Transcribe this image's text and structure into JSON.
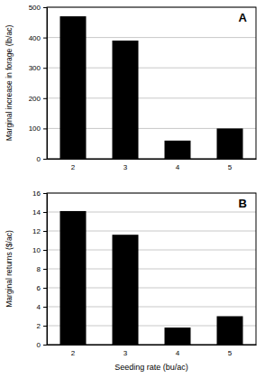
{
  "chart_data": [
    {
      "type": "bar",
      "title": "A",
      "y_label": "Marginal increase in forage (lb/ac)",
      "categories": [
        "2",
        "3",
        "4",
        "5"
      ],
      "values": [
        470,
        390,
        60,
        100
      ],
      "color": "#000000",
      "ylim": [
        0,
        500
      ],
      "yticks": [
        0,
        100,
        200,
        300,
        400,
        500
      ],
      "grid": true
    },
    {
      "type": "bar",
      "title": "B",
      "y_label": "Marginal returns ($/ac)",
      "x_label": "Seeding rate (bu/ac)",
      "categories": [
        "2",
        "3",
        "4",
        "5"
      ],
      "values": [
        14.1,
        11.6,
        1.8,
        3.0
      ],
      "color": "#000000",
      "ylim": [
        0,
        16
      ],
      "yticks": [
        0,
        2,
        4,
        6,
        8,
        10,
        12,
        14,
        16
      ],
      "grid": true
    }
  ]
}
